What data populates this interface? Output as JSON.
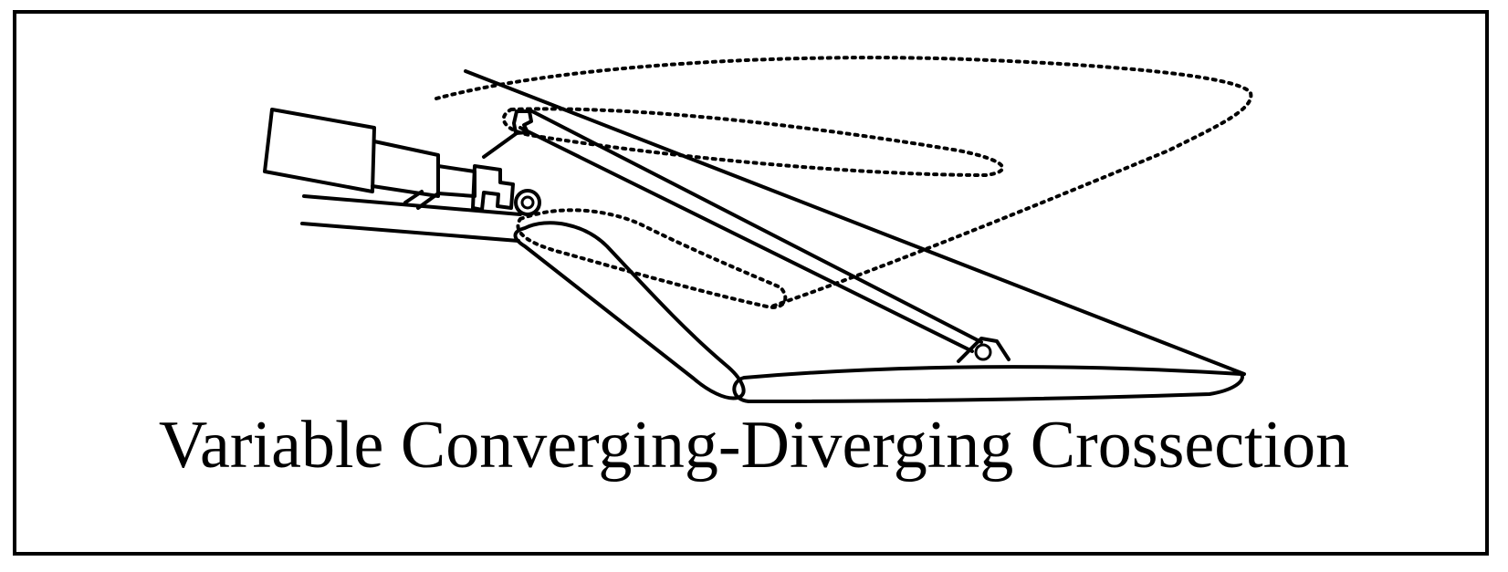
{
  "caption": "Variable Converging-Diverging Crossection",
  "colors": {
    "stroke": "#000000",
    "background": "#ffffff"
  }
}
